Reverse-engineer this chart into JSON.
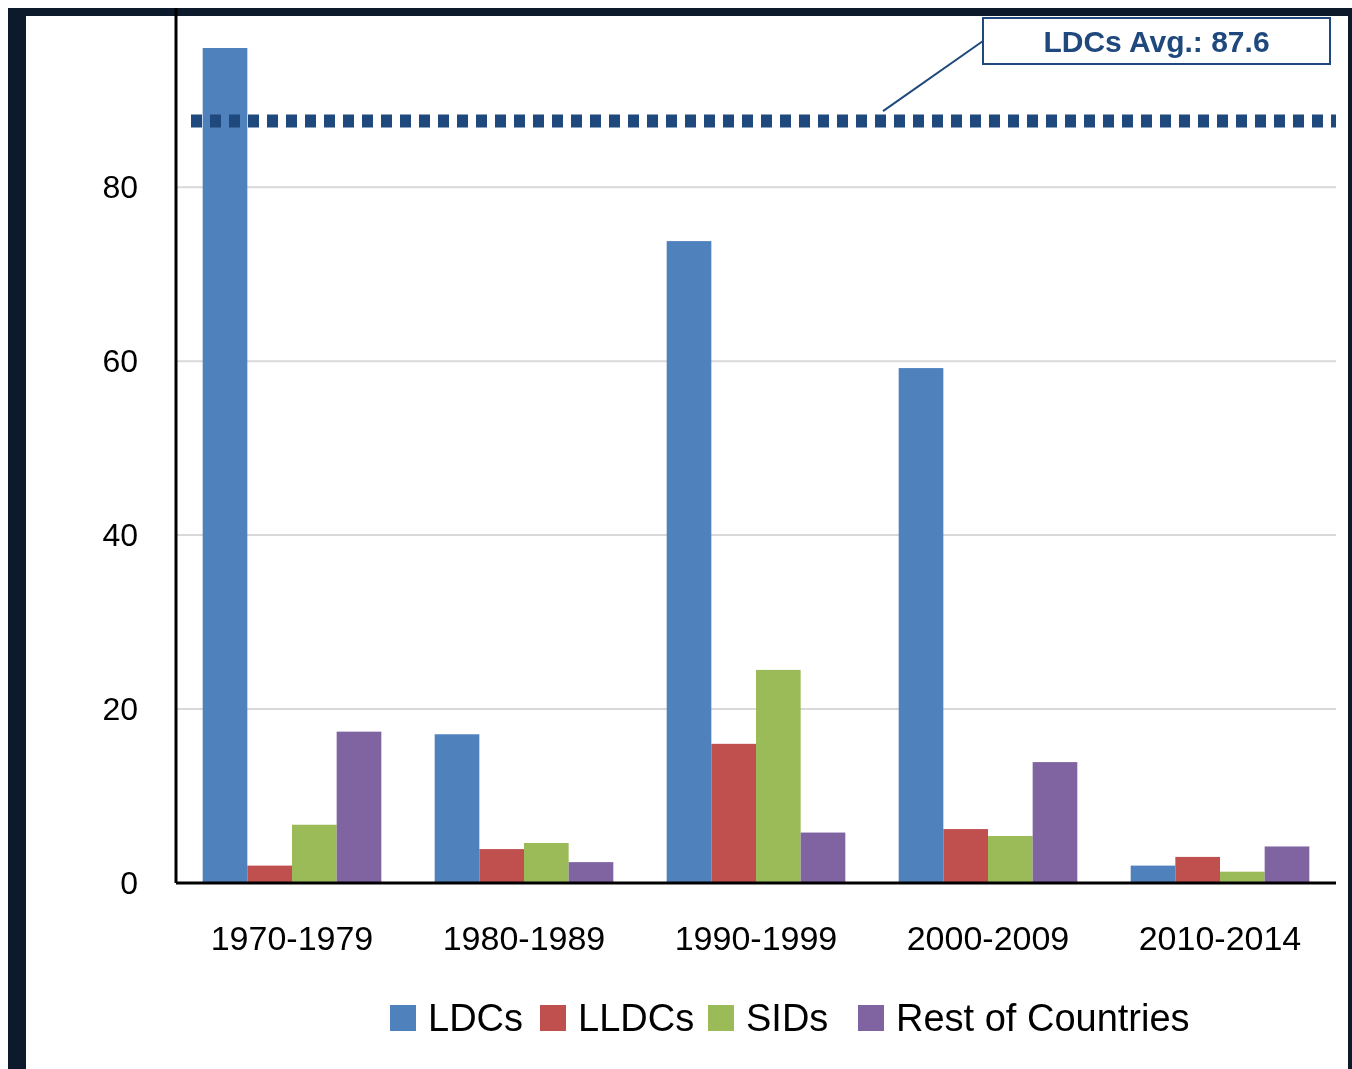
{
  "chart_data": {
    "type": "bar",
    "categories": [
      "1970-1979",
      "1980-1989",
      "1990-1999",
      "2000-2009",
      "2010-2014"
    ],
    "series": [
      {
        "name": "LDCs",
        "color": "#4f81bd",
        "values": [
          96,
          17.1,
          73.8,
          59.2,
          2.0
        ]
      },
      {
        "name": "LLDCs",
        "color": "#c0504d",
        "values": [
          2.0,
          3.9,
          16.0,
          6.2,
          3.0
        ]
      },
      {
        "name": "SIDs",
        "color": "#9bbb59",
        "values": [
          6.7,
          4.6,
          24.5,
          5.4,
          1.3
        ]
      },
      {
        "name": "Rest of Countries",
        "color": "#8064a2",
        "values": [
          17.4,
          2.4,
          5.8,
          13.9,
          4.2
        ]
      }
    ],
    "ylim": [
      0,
      96
    ],
    "yticks": [
      0,
      20,
      40,
      60,
      80
    ],
    "grid": "y",
    "legend": "bottom",
    "ref_lines": [
      {
        "axis": "y",
        "value": 87.6,
        "label": "LDCs Avg.: 87.6",
        "color": "#1f497d",
        "line_style": "dotted"
      }
    ]
  }
}
